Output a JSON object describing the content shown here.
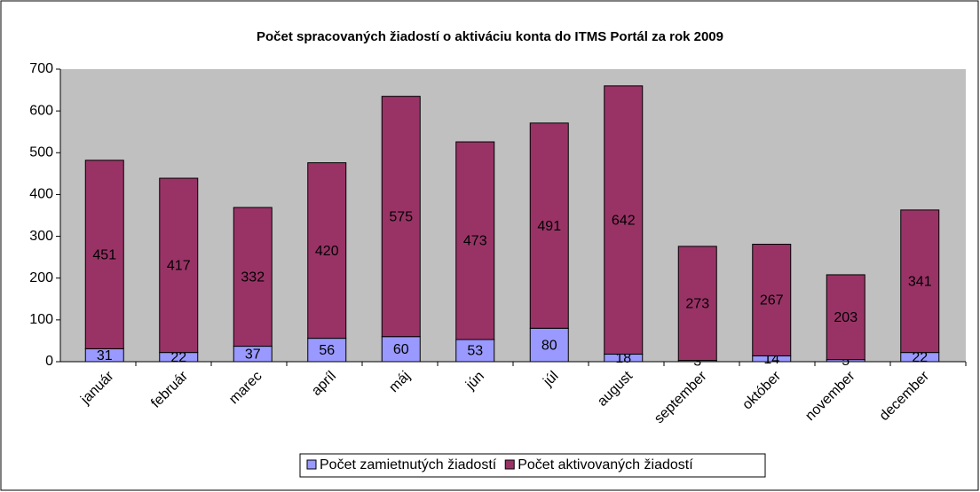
{
  "chart_data": {
    "type": "bar",
    "stacked": true,
    "title": "Počet spracovaných žiadostí o aktiváciu konta do ITMS Portál za rok 2009",
    "categories": [
      "január",
      "február",
      "marec",
      "apríl",
      "máj",
      "jún",
      "júl",
      "august",
      "september",
      "október",
      "november",
      "december"
    ],
    "series": [
      {
        "name": "Počet zamietnutých žiadostí",
        "color": "#9999ff",
        "values": [
          31,
          22,
          37,
          56,
          60,
          53,
          80,
          18,
          3,
          14,
          5,
          22
        ]
      },
      {
        "name": "Počet aktivovaných žiadostí",
        "color": "#993366",
        "values": [
          451,
          417,
          332,
          420,
          575,
          473,
          491,
          642,
          273,
          267,
          203,
          341
        ]
      }
    ],
    "ylim": [
      0,
      700
    ],
    "yticks": [
      0,
      100,
      200,
      300,
      400,
      500,
      600,
      700
    ],
    "grid": false,
    "legend": "bottom"
  }
}
